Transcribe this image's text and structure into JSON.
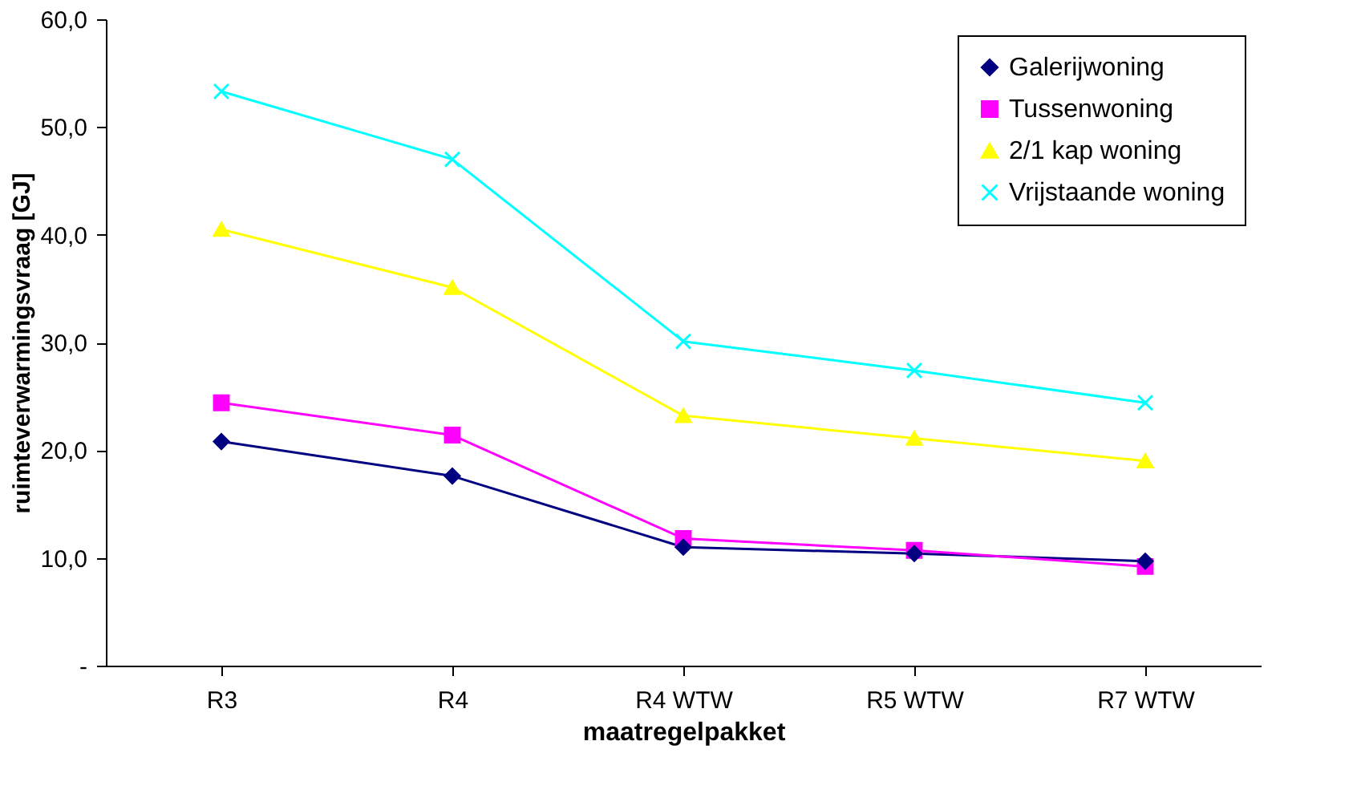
{
  "chart_data": {
    "type": "line",
    "xlabel": "maatregelpakket",
    "ylabel": "ruimteverwarmingsvraag [GJ]",
    "categories": [
      "R3",
      "R4",
      "R4 WTW",
      "R5 WTW",
      "R7 WTW"
    ],
    "ylim": [
      0,
      60
    ],
    "yticks": [
      {
        "value": 0,
        "label": "-"
      },
      {
        "value": 10,
        "label": "10,0"
      },
      {
        "value": 20,
        "label": "20,0"
      },
      {
        "value": 30,
        "label": "30,0"
      },
      {
        "value": 40,
        "label": "40,0"
      },
      {
        "value": 50,
        "label": "50,0"
      },
      {
        "value": 60,
        "label": "60,0"
      }
    ],
    "grid": false,
    "legend": "top right",
    "line_style": "solid",
    "series": [
      {
        "name": "Galerijwoning",
        "color": "#000080",
        "marker": "diamond",
        "values": [
          20.8,
          17.6,
          11.0,
          10.4,
          9.7
        ]
      },
      {
        "name": "Tussenwoning",
        "color": "#ff00ff",
        "marker": "square",
        "values": [
          24.4,
          21.4,
          11.8,
          10.7,
          9.2
        ]
      },
      {
        "name": "2/1 kap woning",
        "color": "#ffff00",
        "marker": "triangle",
        "values": [
          40.5,
          35.1,
          23.2,
          21.1,
          19.0
        ]
      },
      {
        "name": "Vrijstaande woning",
        "color": "#00ffff",
        "marker": "cross",
        "values": [
          53.3,
          47.0,
          30.1,
          27.4,
          24.4
        ]
      }
    ]
  }
}
